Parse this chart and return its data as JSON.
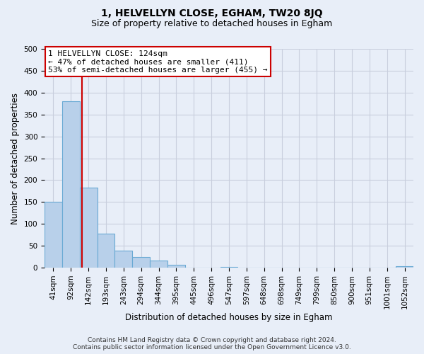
{
  "title": "1, HELVELLYN CLOSE, EGHAM, TW20 8JQ",
  "subtitle": "Size of property relative to detached houses in Egham",
  "xlabel": "Distribution of detached houses by size in Egham",
  "ylabel": "Number of detached properties",
  "footer_line1": "Contains HM Land Registry data © Crown copyright and database right 2024.",
  "footer_line2": "Contains public sector information licensed under the Open Government Licence v3.0.",
  "bar_labels": [
    "41sqm",
    "92sqm",
    "142sqm",
    "193sqm",
    "243sqm",
    "294sqm",
    "344sqm",
    "395sqm",
    "445sqm",
    "496sqm",
    "547sqm",
    "597sqm",
    "648sqm",
    "698sqm",
    "749sqm",
    "799sqm",
    "850sqm",
    "900sqm",
    "951sqm",
    "1001sqm",
    "1052sqm"
  ],
  "bar_values": [
    150,
    380,
    183,
    77,
    39,
    25,
    16,
    6,
    0,
    0,
    2,
    0,
    0,
    0,
    0,
    0,
    0,
    0,
    0,
    0,
    3
  ],
  "bar_color": "#b8d0ea",
  "bar_edge_color": "#6aaad4",
  "background_color": "#e8eef8",
  "grid_color": "#c8cedd",
  "ref_line_color": "#cc0000",
  "ref_line_x": 1.64,
  "ylim": [
    0,
    500
  ],
  "yticks": [
    0,
    50,
    100,
    150,
    200,
    250,
    300,
    350,
    400,
    450,
    500
  ],
  "annotation_text_line1": "1 HELVELLYN CLOSE: 124sqm",
  "annotation_text_line2": "← 47% of detached houses are smaller (411)",
  "annotation_text_line3": "53% of semi-detached houses are larger (455) →",
  "ann_box_edge_color": "#cc0000",
  "title_fontsize": 10,
  "subtitle_fontsize": 9,
  "axis_label_fontsize": 8.5,
  "tick_fontsize": 7.5,
  "ann_fontsize": 8,
  "footer_fontsize": 6.5
}
